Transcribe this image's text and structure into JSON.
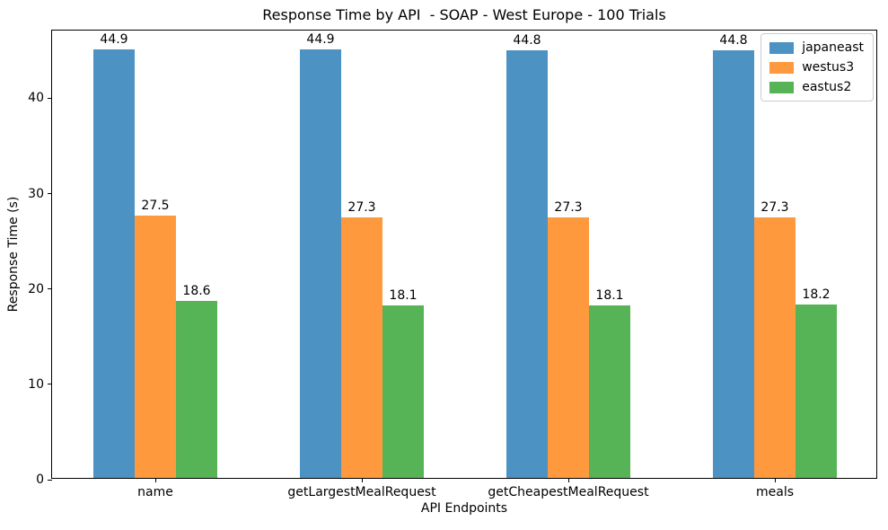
{
  "chart_data": {
    "type": "bar",
    "title": "Response Time by API  - SOAP - West Europe - 100 Trials",
    "xlabel": "API Endpoints",
    "ylabel": "Response Time (s)",
    "categories": [
      "name",
      "getLargestMealRequest",
      "getCheapestMealRequest",
      "meals"
    ],
    "series": [
      {
        "name": "japaneast",
        "color": "#4C92C3",
        "values": [
          44.9,
          44.9,
          44.8,
          44.8
        ]
      },
      {
        "name": "westus3",
        "color": "#FF993E",
        "values": [
          27.5,
          27.3,
          27.3,
          27.3
        ]
      },
      {
        "name": "eastus2",
        "color": "#56B356",
        "values": [
          18.6,
          18.1,
          18.1,
          18.2
        ]
      }
    ],
    "bar_value_labels": true,
    "ylim": [
      0,
      47.1
    ],
    "yticks": [
      0,
      10,
      20,
      30,
      40
    ],
    "grid": false,
    "legend_position": "upper right",
    "background_color": "#ffffff",
    "spine_color": "#000000"
  }
}
